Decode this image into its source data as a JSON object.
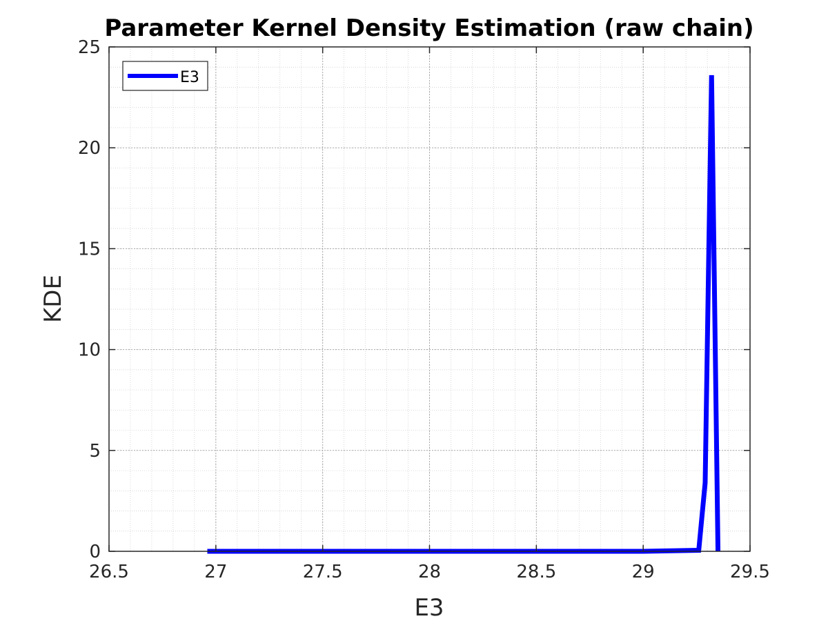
{
  "chart_data": {
    "type": "line",
    "title": "Parameter Kernel Density Estimation (raw chain)",
    "xlabel": "E3",
    "ylabel": "KDE",
    "xlim": [
      26.5,
      29.5
    ],
    "ylim": [
      0,
      25
    ],
    "xticks": [
      26.5,
      27,
      27.5,
      28,
      28.5,
      29,
      29.5
    ],
    "xtick_labels": [
      "26.5",
      "27",
      "27.5",
      "28",
      "28.5",
      "29",
      "29.5"
    ],
    "yticks": [
      0,
      5,
      10,
      15,
      20,
      25
    ],
    "ytick_labels": [
      "0",
      "5",
      "10",
      "15",
      "20",
      "25"
    ],
    "grid": true,
    "minor_grid": true,
    "legend_position": "top-left",
    "series": [
      {
        "name": "E3",
        "color": "#0000ff",
        "x": [
          26.96,
          27.5,
          28.0,
          28.5,
          29.0,
          29.26,
          29.29,
          29.32,
          29.35
        ],
        "y": [
          0,
          0,
          0,
          0,
          0,
          0.05,
          3.4,
          23.6,
          0
        ]
      }
    ]
  }
}
